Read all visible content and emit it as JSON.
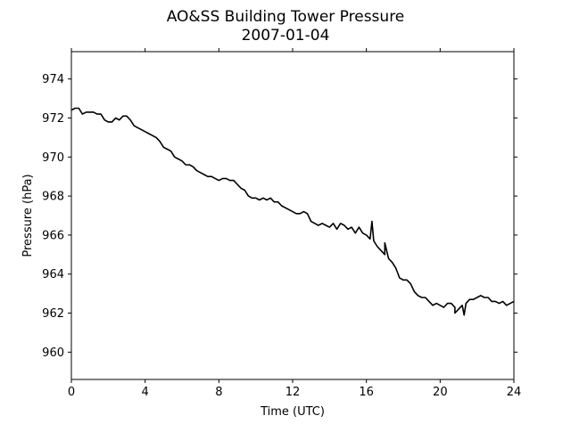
{
  "chart_data": {
    "type": "line",
    "title": "AO&SS Building Tower Pressure",
    "subtitle": "2007-01-04",
    "xlabel": "Time (UTC)",
    "ylabel": "Pressure (hPa)",
    "xlim": [
      0,
      24
    ],
    "ylim": [
      958.6,
      975.4
    ],
    "xticks": [
      0,
      4,
      8,
      12,
      16,
      20,
      24
    ],
    "yticks": [
      960,
      962,
      964,
      966,
      968,
      970,
      972,
      974
    ],
    "grid": false,
    "legend": "none",
    "line_color": "#000000",
    "series": [
      {
        "x": [
          0,
          0.2,
          0.4,
          0.6,
          0.8,
          1.0,
          1.2,
          1.4,
          1.6,
          1.8,
          2.0,
          2.2,
          2.4,
          2.6,
          2.8,
          3.0,
          3.2,
          3.4,
          3.6,
          3.8,
          4.0,
          4.2,
          4.4,
          4.6,
          4.8,
          5.0,
          5.2,
          5.4,
          5.6,
          5.8,
          6.0,
          6.2,
          6.4,
          6.6,
          6.8,
          7.0,
          7.2,
          7.4,
          7.6,
          7.8,
          8.0,
          8.2,
          8.4,
          8.6,
          8.8,
          9.0,
          9.2,
          9.4,
          9.6,
          9.8,
          10.0,
          10.2,
          10.4,
          10.6,
          10.8,
          11.0,
          11.2,
          11.4,
          11.6,
          11.8,
          12.0,
          12.2,
          12.4,
          12.6,
          12.8,
          13.0,
          13.2,
          13.4,
          13.6,
          13.8,
          14.0,
          14.2,
          14.4,
          14.6,
          14.8,
          15.0,
          15.2,
          15.4,
          15.6,
          15.8,
          16.0,
          16.2,
          16.4,
          16.6,
          16.8,
          17.0,
          17.2,
          17.4,
          17.6,
          17.8,
          18.0,
          18.2,
          18.4,
          18.6,
          18.8,
          19.0,
          19.2,
          19.4,
          19.6,
          19.8,
          20.0,
          20.2,
          20.4,
          20.6,
          20.8,
          21.0,
          21.2,
          21.4,
          21.6,
          21.8,
          22.0,
          22.2,
          22.4,
          22.6,
          22.8,
          23.0,
          23.2,
          23.4,
          23.6,
          23.8,
          24.0
        ],
        "y": [
          972.4,
          972.5,
          972.5,
          972.2,
          972.3,
          972.3,
          972.3,
          972.2,
          972.2,
          971.9,
          971.8,
          971.8,
          972.0,
          971.9,
          972.1,
          972.1,
          971.9,
          971.6,
          971.5,
          971.4,
          971.3,
          971.2,
          971.1,
          971.0,
          970.8,
          970.5,
          970.4,
          970.3,
          970.0,
          969.9,
          969.8,
          969.6,
          969.6,
          969.5,
          969.3,
          969.2,
          969.1,
          969.0,
          969.0,
          968.9,
          968.8,
          968.9,
          968.9,
          968.8,
          968.8,
          968.6,
          968.4,
          968.3,
          968.0,
          967.9,
          967.9,
          967.8,
          967.9,
          967.8,
          967.9,
          967.7,
          967.7,
          967.5,
          967.4,
          967.3,
          967.2,
          967.1,
          967.1,
          967.2,
          967.1,
          966.7,
          966.6,
          966.5,
          966.6,
          966.5,
          966.4,
          966.6,
          966.3,
          966.6,
          966.5,
          966.3,
          966.4,
          966.1,
          966.4,
          966.1,
          966.0,
          965.8,
          965.7,
          965.4,
          965.2,
          965.0,
          964.8,
          964.6,
          964.3,
          963.8,
          963.7,
          963.7,
          963.5,
          963.1,
          962.9,
          962.8,
          962.8,
          962.6,
          962.4,
          962.5,
          962.4,
          962.3,
          962.5,
          962.5,
          962.3,
          962.2,
          962.4,
          962.5,
          962.7,
          962.7,
          962.8,
          962.9,
          962.8,
          962.8,
          962.6,
          962.6,
          962.5,
          962.6,
          962.4,
          962.5,
          962.6
        ],
        "spikes": [
          {
            "x": 16.3,
            "y": 966.7
          },
          {
            "x": 21.3,
            "y": 961.9
          },
          {
            "x": 20.8,
            "y": 962.0
          },
          {
            "x": 17.0,
            "y": 965.6
          }
        ]
      }
    ]
  }
}
